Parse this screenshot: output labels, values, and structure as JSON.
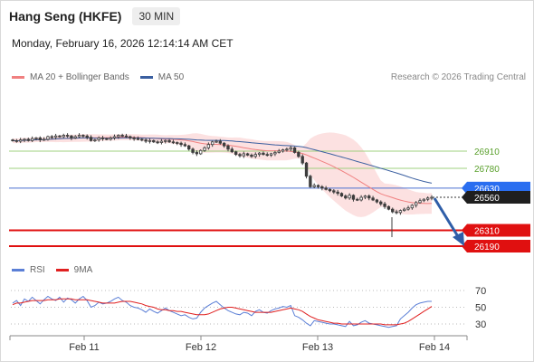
{
  "header": {
    "title": "Hang Seng (HKFE)",
    "timeframe": "30 MIN"
  },
  "datetime": "Monday, February 16, 2026 12:14:14 AM CET",
  "legend_price": [
    {
      "label": "MA 20 + Bollinger Bands",
      "color": "#f08080"
    },
    {
      "label": "MA 50",
      "color": "#3a5fa0"
    }
  ],
  "legend_rsi": [
    {
      "label": "RSI",
      "color": "#5b7fd6"
    },
    {
      "label": "9MA",
      "color": "#e02020"
    }
  ],
  "source": "Research © 2026 Trading Central",
  "colors": {
    "green_level": "#5aa02c",
    "resistance_line": "#4a6fd0",
    "support_line": "#e01010",
    "arrow": "#2f5ea8",
    "candle": "#3d3d3d"
  },
  "chart_data": {
    "type": "candlestick",
    "price_axis_range": [
      26130,
      27050
    ],
    "x_axis": {
      "labels": [
        "Feb 11",
        "Feb 12",
        "Feb 13",
        "Feb 14"
      ]
    },
    "levels": [
      {
        "name": "resistance_2",
        "value": "26910",
        "style": "green"
      },
      {
        "name": "resistance_1",
        "value": "26780",
        "style": "green"
      },
      {
        "name": "pivot",
        "value": "26630",
        "style": "blue"
      },
      {
        "name": "current",
        "value": "26560",
        "style": "dark"
      },
      {
        "name": "support_1",
        "value": "26310",
        "style": "red"
      },
      {
        "name": "support_2",
        "value": "26190",
        "style": "red"
      }
    ],
    "close_series": [
      26990,
      26985,
      26995,
      27000,
      26990,
      27005,
      27010,
      26995,
      27000,
      27020,
      27015,
      27025,
      27020,
      27030,
      27025,
      27010,
      27020,
      27030,
      27025,
      27015,
      26990,
      26995,
      27010,
      27005,
      27000,
      27010,
      27020,
      27030,
      27025,
      27020,
      27010,
      27005,
      27000,
      26995,
      26985,
      26990,
      26980,
      26975,
      26985,
      26990,
      26980,
      26975,
      26970,
      26960,
      26950,
      26925,
      26900,
      26890,
      26915,
      26935,
      26960,
      26980,
      26985,
      26970,
      26950,
      26925,
      26905,
      26885,
      26875,
      26890,
      26880,
      26870,
      26885,
      26895,
      26885,
      26880,
      26890,
      26900,
      26910,
      26920,
      26925,
      26935,
      26900,
      26870,
      26820,
      26720,
      26640,
      26650,
      26640,
      26630,
      26620,
      26610,
      26600,
      26590,
      26570,
      26555,
      26575,
      26545,
      26540,
      26560,
      26570,
      26555,
      26540,
      26525,
      26510,
      26490,
      26470,
      26450,
      26445,
      26460,
      26470,
      26480,
      26500,
      26520,
      26535,
      26545,
      26555,
      26560
    ],
    "rsi": {
      "axis_ticks": [
        70,
        50,
        30
      ],
      "rsi_values": [
        55,
        58,
        52,
        60,
        57,
        62,
        58,
        54,
        59,
        63,
        60,
        58,
        62,
        56,
        61,
        59,
        55,
        60,
        63,
        58,
        50,
        52,
        56,
        54,
        55,
        57,
        60,
        62,
        58,
        56,
        52,
        50,
        49,
        47,
        44,
        48,
        45,
        43,
        46,
        49,
        46,
        44,
        42,
        40,
        41,
        38,
        36,
        37,
        44,
        49,
        52,
        55,
        57,
        53,
        49,
        46,
        44,
        42,
        41,
        44,
        43,
        40,
        45,
        47,
        44,
        43,
        46,
        48,
        49,
        51,
        50,
        52,
        40,
        38,
        35,
        31,
        28,
        34,
        33,
        32,
        31,
        30,
        30,
        29,
        28,
        27,
        33,
        28,
        29,
        32,
        34,
        31,
        30,
        29,
        28,
        27,
        26,
        27,
        28,
        36,
        40,
        44,
        49,
        53,
        55,
        56,
        57,
        57
      ],
      "ma9_values": [
        53,
        55,
        55,
        56,
        57,
        58,
        58,
        58,
        58,
        59,
        59,
        59,
        60,
        60,
        60,
        60,
        59,
        59,
        59,
        59,
        58,
        57,
        56,
        55,
        55,
        55,
        55,
        56,
        57,
        57,
        57,
        56,
        55,
        54,
        52,
        51,
        50,
        48,
        47,
        47,
        46,
        46,
        45,
        45,
        44,
        43,
        42,
        41,
        41,
        41,
        42,
        44,
        46,
        48,
        49,
        50,
        50,
        49,
        48,
        47,
        46,
        45,
        44,
        44,
        44,
        44,
        44,
        45,
        46,
        47,
        48,
        49,
        48,
        47,
        45,
        42,
        39,
        37,
        35,
        34,
        33,
        32,
        31,
        31,
        30,
        30,
        30,
        30,
        30,
        30,
        30,
        30,
        30,
        30,
        30,
        29,
        29,
        29,
        29,
        30,
        31,
        33,
        36,
        39,
        42,
        45,
        48,
        51
      ]
    }
  }
}
